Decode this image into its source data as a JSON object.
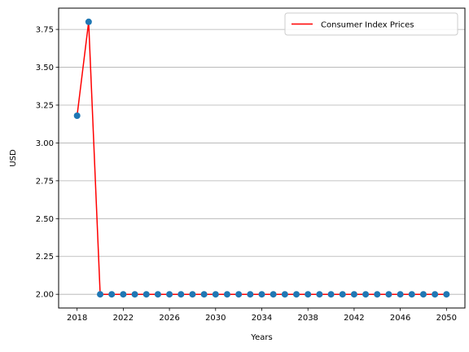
{
  "chart_data": {
    "type": "line",
    "xlabel": "Years",
    "ylabel": "USD",
    "xlim": [
      2016.4,
      2051.6
    ],
    "ylim": [
      1.9095,
      3.8905
    ],
    "x_ticks": [
      2018,
      2022,
      2026,
      2030,
      2034,
      2038,
      2042,
      2046,
      2050
    ],
    "y_ticks": [
      2.0,
      2.25,
      2.5,
      2.75,
      3.0,
      3.25,
      3.5,
      3.75
    ],
    "y_tick_labels": [
      "2.00",
      "2.25",
      "2.50",
      "2.75",
      "3.00",
      "3.25",
      "3.50",
      "3.75"
    ],
    "grid": {
      "y": true,
      "x": false
    },
    "legend": {
      "placement": "top-right",
      "entries": [
        "Consumer Index Prices"
      ]
    },
    "colors": {
      "line": "#ff0000",
      "markers": "#1f77b4",
      "grid": "#b0b0b0"
    },
    "series": [
      {
        "name": "Consumer Index Prices",
        "x": [
          2018,
          2019,
          2020,
          2021,
          2022,
          2023,
          2024,
          2025,
          2026,
          2027,
          2028,
          2029,
          2030,
          2031,
          2032,
          2033,
          2034,
          2035,
          2036,
          2037,
          2038,
          2039,
          2040,
          2041,
          2042,
          2043,
          2044,
          2045,
          2046,
          2047,
          2048,
          2049,
          2050
        ],
        "y": [
          3.18,
          3.8,
          2.0,
          2.0,
          2.0,
          2.0,
          2.0,
          2.0,
          2.0,
          2.0,
          2.0,
          2.0,
          2.0,
          2.0,
          2.0,
          2.0,
          2.0,
          2.0,
          2.0,
          2.0,
          2.0,
          2.0,
          2.0,
          2.0,
          2.0,
          2.0,
          2.0,
          2.0,
          2.0,
          2.0,
          2.0,
          2.0,
          2.0
        ]
      }
    ]
  }
}
